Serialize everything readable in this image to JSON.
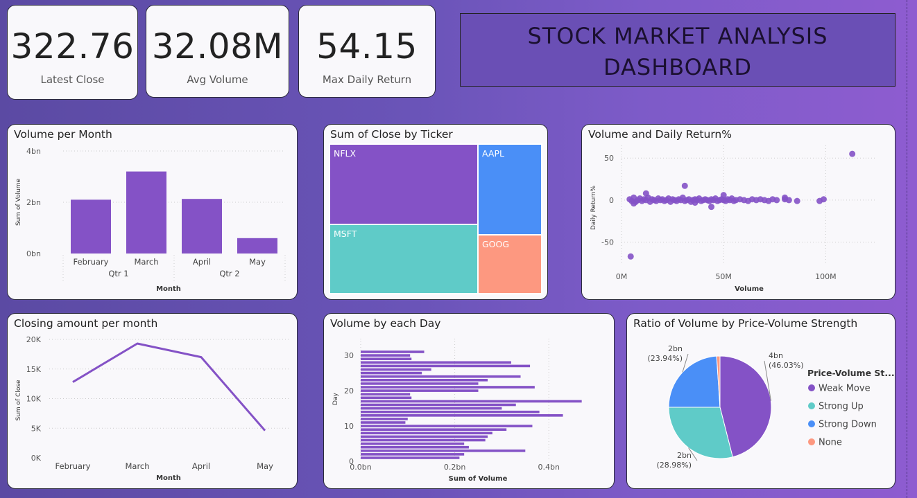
{
  "kpis": [
    {
      "value": "322.76",
      "label": "Latest Close"
    },
    {
      "value": "32.08M",
      "label": "Avg Volume"
    },
    {
      "value": "54.15",
      "label": "Max Daily Return"
    }
  ],
  "dashboard_title": {
    "line1": "STOCK MARKET ANALYSIS",
    "line2": "DASHBOARD"
  },
  "colors": {
    "purple": "#8452c6",
    "teal": "#5fcbc8",
    "blue": "#4a8ff7",
    "salmon": "#fd9880"
  },
  "chart_data": [
    {
      "type": "bar",
      "title": "Volume per Month",
      "categories": [
        "February",
        "March",
        "April",
        "May"
      ],
      "groups": [
        {
          "label": "Qtr 1",
          "span": 2
        },
        {
          "label": "Qtr 2",
          "span": 2
        }
      ],
      "values": [
        2.1,
        3.2,
        2.13,
        0.6
      ],
      "yticks": [
        "0bn",
        "2bn",
        "4bn"
      ],
      "ylim": [
        0,
        4
      ],
      "xlabel": "Month",
      "ylabel": "Sum of Volume"
    },
    {
      "type": "treemap",
      "title": "Sum of Close by Ticker",
      "items": [
        {
          "name": "NFLX",
          "color": "#8452c6"
        },
        {
          "name": "MSFT",
          "color": "#5fcbc8"
        },
        {
          "name": "AAPL",
          "color": "#4a8ff7"
        },
        {
          "name": "GOOG",
          "color": "#fd9880"
        }
      ]
    },
    {
      "type": "scatter",
      "title": "Volume and Daily Return%",
      "xlabel": "Volume",
      "ylabel": "Daily Return%",
      "xticks": [
        "0M",
        "50M",
        "100M"
      ],
      "yticks": [
        "50",
        "0",
        "-50"
      ],
      "xlim": [
        0,
        125
      ],
      "ylim": [
        -75,
        65
      ],
      "points": [
        [
          4,
          1
        ],
        [
          5,
          -1
        ],
        [
          6,
          3
        ],
        [
          7,
          -2
        ],
        [
          8,
          0
        ],
        [
          9,
          2
        ],
        [
          10,
          -1
        ],
        [
          11,
          1
        ],
        [
          12,
          0
        ],
        [
          13,
          3
        ],
        [
          14,
          -2
        ],
        [
          15,
          1
        ],
        [
          16,
          0
        ],
        [
          17,
          -1
        ],
        [
          18,
          2
        ],
        [
          19,
          0
        ],
        [
          20,
          1
        ],
        [
          21,
          -1
        ],
        [
          22,
          0
        ],
        [
          23,
          2
        ],
        [
          24,
          -2
        ],
        [
          25,
          1
        ],
        [
          26,
          0
        ],
        [
          27,
          -1
        ],
        [
          28,
          1
        ],
        [
          29,
          0
        ],
        [
          30,
          3
        ],
        [
          31,
          -1
        ],
        [
          32,
          0
        ],
        [
          33,
          1
        ],
        [
          34,
          -2
        ],
        [
          35,
          0
        ],
        [
          36,
          1
        ],
        [
          37,
          0
        ],
        [
          38,
          2
        ],
        [
          39,
          -1
        ],
        [
          40,
          0
        ],
        [
          41,
          1
        ],
        [
          42,
          0
        ],
        [
          43,
          -1
        ],
        [
          44,
          1
        ],
        [
          45,
          0
        ],
        [
          46,
          2
        ],
        [
          47,
          -1
        ],
        [
          48,
          0
        ],
        [
          49,
          1
        ],
        [
          50,
          0
        ],
        [
          51,
          -1
        ],
        [
          52,
          1
        ],
        [
          53,
          0
        ],
        [
          54,
          2
        ],
        [
          55,
          -1
        ],
        [
          56,
          0
        ],
        [
          58,
          1
        ],
        [
          60,
          0
        ],
        [
          62,
          -1
        ],
        [
          64,
          1
        ],
        [
          66,
          0
        ],
        [
          68,
          1
        ],
        [
          70,
          0
        ],
        [
          72,
          -1
        ],
        [
          74,
          1
        ],
        [
          76,
          0
        ],
        [
          80,
          1
        ],
        [
          82,
          0
        ],
        [
          86,
          -1
        ],
        [
          4.5,
          -67
        ],
        [
          31,
          17
        ],
        [
          50,
          6
        ],
        [
          44,
          -8
        ],
        [
          12,
          8
        ],
        [
          6,
          -4
        ],
        [
          36,
          -3
        ],
        [
          80,
          3
        ],
        [
          97,
          -1
        ],
        [
          99,
          1
        ],
        [
          113,
          55
        ]
      ]
    },
    {
      "type": "line",
      "title": "Closing amount per month",
      "categories": [
        "February",
        "March",
        "April",
        "May"
      ],
      "values": [
        12800,
        19300,
        17000,
        4600
      ],
      "yticks": [
        "0K",
        "5K",
        "10K",
        "15K",
        "20K"
      ],
      "ylim": [
        0,
        20000
      ],
      "xlabel": "Month",
      "ylabel": "Sum of Close"
    },
    {
      "type": "bar-horizontal",
      "title": "Volume by each Day",
      "xlabel": "Sum of Volume",
      "ylabel": "Day",
      "xticks": [
        "0.0bn",
        "0.2bn",
        "0.4bn"
      ],
      "xlim": [
        0,
        0.5
      ],
      "yticks": [
        "0",
        "10",
        "20",
        "30"
      ],
      "days": [
        31,
        30,
        29,
        28,
        27,
        26,
        25,
        24,
        23,
        22,
        21,
        20,
        19,
        18,
        17,
        16,
        15,
        14,
        13,
        12,
        11,
        10,
        9,
        8,
        7,
        6,
        5,
        4,
        3,
        2,
        1
      ],
      "values": [
        0.135,
        0.105,
        0.108,
        0.32,
        0.36,
        0.15,
        0.13,
        0.34,
        0.27,
        0.25,
        0.37,
        0.25,
        0.105,
        0.108,
        0.47,
        0.33,
        0.3,
        0.38,
        0.43,
        0.1,
        0.095,
        0.365,
        0.31,
        0.28,
        0.27,
        0.265,
        0.22,
        0.23,
        0.35,
        0.22,
        0.21
      ]
    },
    {
      "type": "pie",
      "title": "Ratio of Volume by Price-Volume Strength",
      "legend_title": "Price-Volume St...",
      "slices": [
        {
          "name": "Weak Move",
          "percent": 46.03,
          "label": "4bn",
          "pct_label": "(46.03%)",
          "color": "#8452c6"
        },
        {
          "name": "Strong Up",
          "percent": 28.98,
          "label": "2bn",
          "pct_label": "(28.98%)",
          "color": "#5fcbc8"
        },
        {
          "name": "Strong Down",
          "percent": 23.94,
          "label": "2bn",
          "pct_label": "(23.94%)",
          "color": "#4a8ff7"
        },
        {
          "name": "None",
          "percent": 1.05,
          "label": "",
          "pct_label": "",
          "color": "#fd9880"
        }
      ]
    }
  ]
}
